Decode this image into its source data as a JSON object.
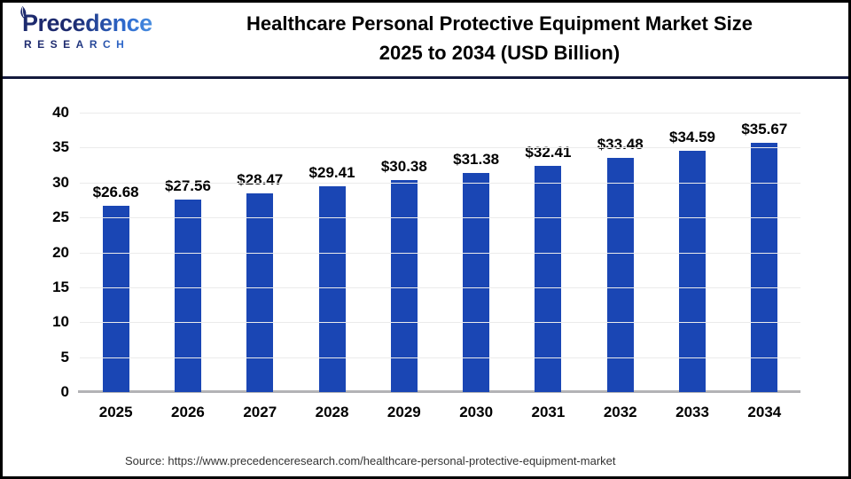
{
  "header": {
    "logo": {
      "name": "Precedence",
      "sub": "RESEARCH"
    },
    "title_line1": "Healthcare Personal Protective Equipment Market Size",
    "title_line2": "2025 to 2034 (USD Billion)"
  },
  "chart_data": {
    "type": "bar",
    "title": "Healthcare Personal Protective Equipment Market Size 2025 to 2034 (USD Billion)",
    "categories": [
      "2025",
      "2026",
      "2027",
      "2028",
      "2029",
      "2030",
      "2031",
      "2032",
      "2033",
      "2034"
    ],
    "values": [
      26.68,
      27.56,
      28.47,
      29.41,
      30.38,
      31.38,
      32.41,
      33.48,
      34.59,
      35.67
    ],
    "value_labels": [
      "$26.68",
      "$27.56",
      "$28.47",
      "$29.41",
      "$30.38",
      "$31.38",
      "$32.41",
      "$33.48",
      "$34.59",
      "$35.67"
    ],
    "xlabel": "",
    "ylabel": "",
    "ylim": [
      0,
      40
    ],
    "y_ticks": [
      0,
      5,
      10,
      15,
      20,
      25,
      30,
      35,
      40
    ],
    "grid": "horizontal",
    "legend": "none",
    "bar_color": "#1a46b4"
  },
  "footer": {
    "source": "Source: https://www.precedenceresearch.com/healthcare-personal-protective-equipment-market"
  },
  "colors": {
    "bar": "#1a46b4",
    "divider_navy": "#141a3d",
    "logo_navy": "#1d2a6e",
    "logo_blue": "#2e6bd0",
    "gridline": "#ebebeb",
    "axis_baseline": "#b3b3b6"
  }
}
